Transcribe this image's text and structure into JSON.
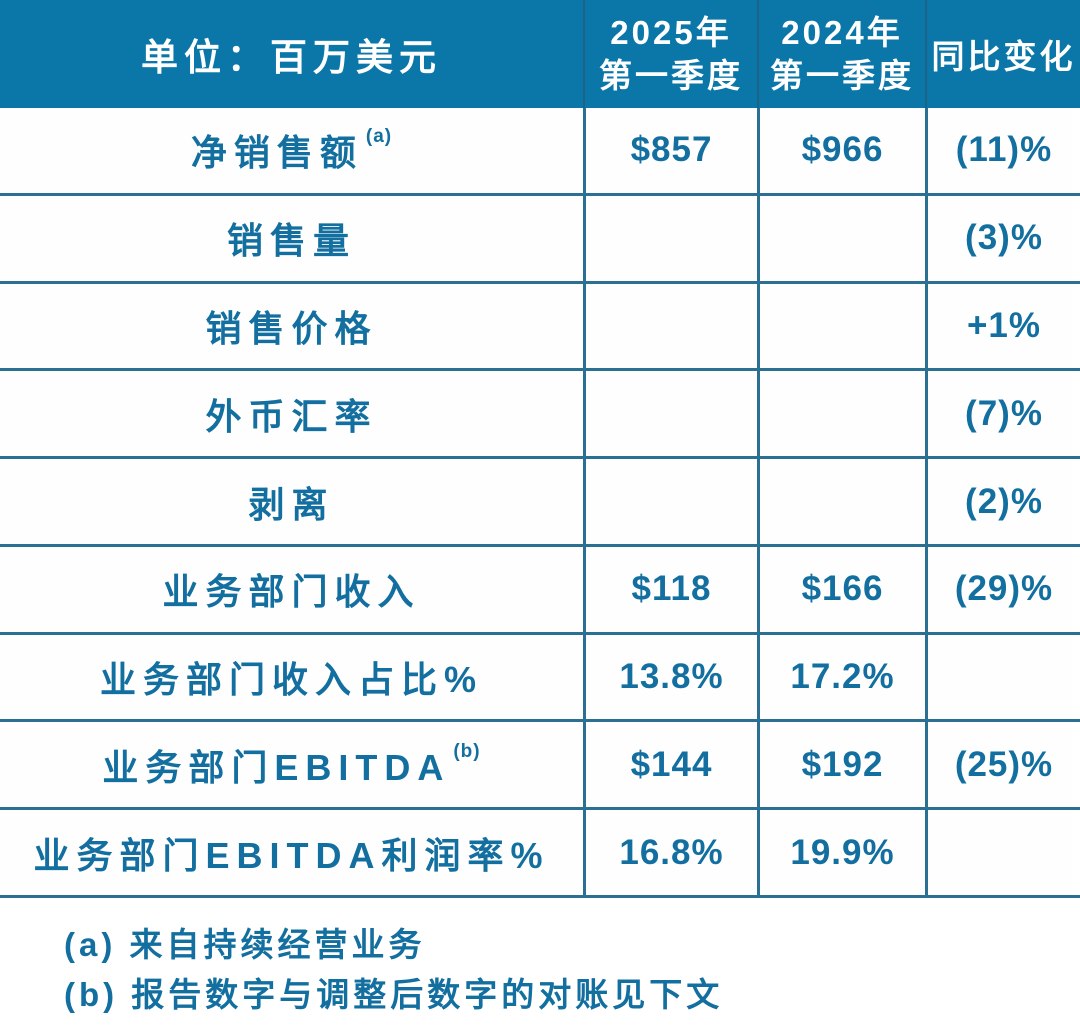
{
  "header": {
    "col1": "单位：百万美元",
    "col2": {
      "line1": "2025年",
      "line2": "第一季度"
    },
    "col3": {
      "line1": "2024年",
      "line2": "第一季度"
    },
    "col4": "同比变化"
  },
  "rows": [
    {
      "label": "净销售额",
      "sup": "(a)",
      "q1_2025": "$857",
      "q1_2024": "$966",
      "yoy": "(11)%"
    },
    {
      "label": "销售量",
      "sup": "",
      "q1_2025": "",
      "q1_2024": "",
      "yoy": "(3)%"
    },
    {
      "label": "销售价格",
      "sup": "",
      "q1_2025": "",
      "q1_2024": "",
      "yoy": "+1%"
    },
    {
      "label": "外币汇率",
      "sup": "",
      "q1_2025": "",
      "q1_2024": "",
      "yoy": "(7)%"
    },
    {
      "label": "剥离",
      "sup": "",
      "q1_2025": "",
      "q1_2024": "",
      "yoy": "(2)%"
    },
    {
      "label": "业务部门收入",
      "sup": "",
      "q1_2025": "$118",
      "q1_2024": "$166",
      "yoy": "(29)%"
    },
    {
      "label": "业务部门收入占比%",
      "sup": "",
      "q1_2025": "13.8%",
      "q1_2024": "17.2%",
      "yoy": ""
    },
    {
      "label": "业务部门EBITDA",
      "sup": "(b)",
      "q1_2025": "$144",
      "q1_2024": "$192",
      "yoy": "(25)%"
    },
    {
      "label": "业务部门EBITDA利润率%",
      "sup": "",
      "q1_2025": "16.8%",
      "q1_2024": "19.9%",
      "yoy": ""
    }
  ],
  "footnotes": [
    "(a) 来自持续经营业务",
    "(b) 报告数字与调整后数字的对账见下文"
  ],
  "colors": {
    "header_bg": "#0b76a8",
    "line": "#2b6f93",
    "text": "#136f9f"
  }
}
